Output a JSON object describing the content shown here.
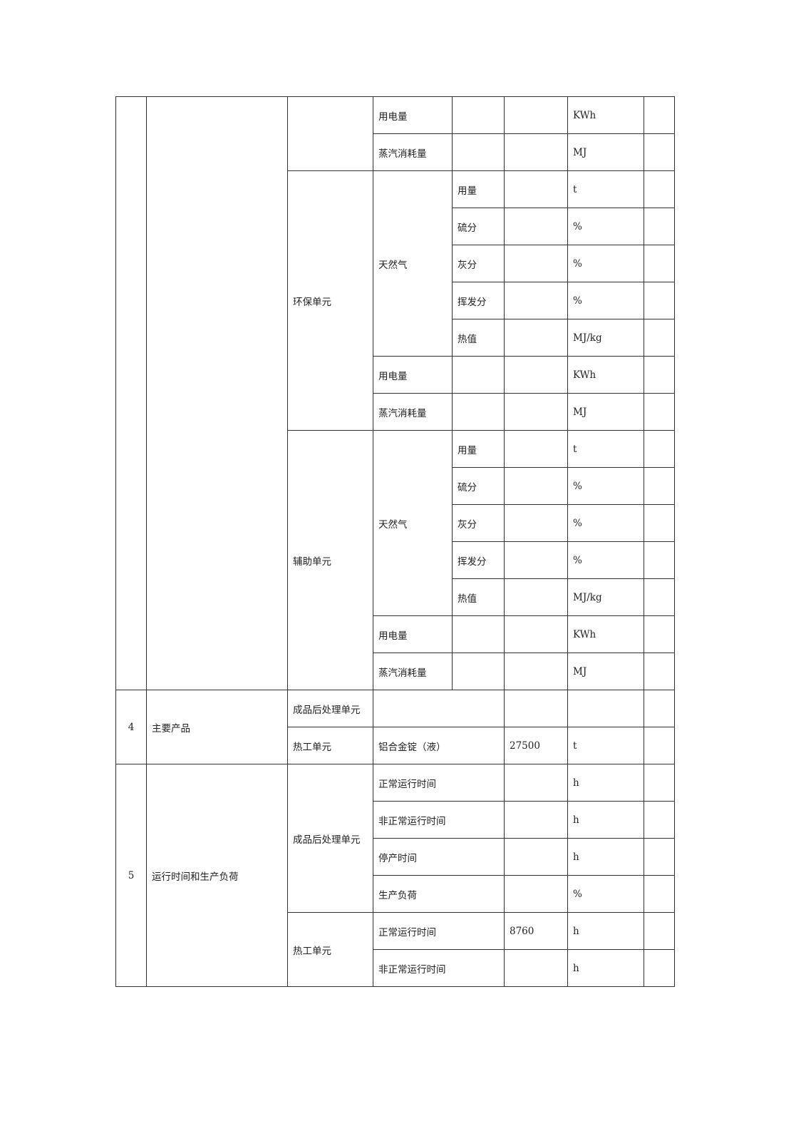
{
  "table": {
    "rows": [
      [
        {
          "t": "",
          "rs": 16
        },
        {
          "t": "",
          "rs": 16
        },
        {
          "t": "",
          "rs": 2
        },
        {
          "t": "用电量"
        },
        {
          "t": ""
        },
        {
          "t": ""
        },
        {
          "t": "KWh"
        },
        {
          "t": ""
        }
      ],
      [
        {
          "t": "蒸汽消耗量"
        },
        {
          "t": ""
        },
        {
          "t": ""
        },
        {
          "t": "MJ"
        },
        {
          "t": ""
        }
      ],
      [
        {
          "t": "环保单元",
          "rs": 7
        },
        {
          "t": "天然气",
          "rs": 5
        },
        {
          "t": "用量"
        },
        {
          "t": ""
        },
        {
          "t": "t"
        },
        {
          "t": ""
        }
      ],
      [
        {
          "t": "硫分"
        },
        {
          "t": ""
        },
        {
          "t": "%"
        },
        {
          "t": ""
        }
      ],
      [
        {
          "t": "灰分"
        },
        {
          "t": ""
        },
        {
          "t": "%"
        },
        {
          "t": ""
        }
      ],
      [
        {
          "t": "挥发分"
        },
        {
          "t": ""
        },
        {
          "t": "%"
        },
        {
          "t": ""
        }
      ],
      [
        {
          "t": "热值"
        },
        {
          "t": ""
        },
        {
          "t": "MJ/kg"
        },
        {
          "t": ""
        }
      ],
      [
        {
          "t": "用电量"
        },
        {
          "t": ""
        },
        {
          "t": ""
        },
        {
          "t": "KWh"
        },
        {
          "t": ""
        }
      ],
      [
        {
          "t": "蒸汽消耗量"
        },
        {
          "t": ""
        },
        {
          "t": ""
        },
        {
          "t": "MJ"
        },
        {
          "t": ""
        }
      ],
      [
        {
          "t": "辅助单元",
          "rs": 7
        },
        {
          "t": "天然气",
          "rs": 5
        },
        {
          "t": "用量"
        },
        {
          "t": ""
        },
        {
          "t": "t"
        },
        {
          "t": ""
        }
      ],
      [
        {
          "t": "硫分"
        },
        {
          "t": ""
        },
        {
          "t": "%"
        },
        {
          "t": ""
        }
      ],
      [
        {
          "t": "灰分"
        },
        {
          "t": ""
        },
        {
          "t": "%"
        },
        {
          "t": ""
        }
      ],
      [
        {
          "t": "挥发分"
        },
        {
          "t": ""
        },
        {
          "t": "%"
        },
        {
          "t": ""
        }
      ],
      [
        {
          "t": "热值"
        },
        {
          "t": ""
        },
        {
          "t": "MJ/kg"
        },
        {
          "t": ""
        }
      ],
      [
        {
          "t": "用电量"
        },
        {
          "t": ""
        },
        {
          "t": ""
        },
        {
          "t": "KWh"
        },
        {
          "t": ""
        }
      ],
      [
        {
          "t": "蒸汽消耗量"
        },
        {
          "t": ""
        },
        {
          "t": ""
        },
        {
          "t": "MJ"
        },
        {
          "t": ""
        }
      ],
      [
        {
          "t": "4",
          "rs": 2,
          "c": 1
        },
        {
          "t": "主要产品",
          "rs": 2
        },
        {
          "t": "成品后处理单元"
        },
        {
          "t": "",
          "cs": 2
        },
        {
          "t": ""
        },
        {
          "t": ""
        },
        {
          "t": ""
        }
      ],
      [
        {
          "t": "热工单元"
        },
        {
          "t": "铝合金锭（液）",
          "cs": 2
        },
        {
          "t": "27500"
        },
        {
          "t": "t"
        },
        {
          "t": ""
        }
      ],
      [
        {
          "t": "5",
          "rs": 6,
          "c": 1
        },
        {
          "t": "运行时间和生产负荷",
          "rs": 6
        },
        {
          "t": "成品后处理单元",
          "rs": 4
        },
        {
          "t": "正常运行时间",
          "cs": 2
        },
        {
          "t": ""
        },
        {
          "t": "h"
        },
        {
          "t": ""
        }
      ],
      [
        {
          "t": "非正常运行时间",
          "cs": 2
        },
        {
          "t": ""
        },
        {
          "t": "h"
        },
        {
          "t": ""
        }
      ],
      [
        {
          "t": "停产时间",
          "cs": 2
        },
        {
          "t": ""
        },
        {
          "t": "h"
        },
        {
          "t": ""
        }
      ],
      [
        {
          "t": "生产负荷",
          "cs": 2
        },
        {
          "t": ""
        },
        {
          "t": "%"
        },
        {
          "t": ""
        }
      ],
      [
        {
          "t": "热工单元",
          "rs": 2
        },
        {
          "t": "正常运行时间",
          "cs": 2
        },
        {
          "t": "8760"
        },
        {
          "t": "h"
        },
        {
          "t": ""
        }
      ],
      [
        {
          "t": "非正常运行时间",
          "cs": 2
        },
        {
          "t": ""
        },
        {
          "t": "h"
        },
        {
          "t": ""
        }
      ]
    ]
  }
}
